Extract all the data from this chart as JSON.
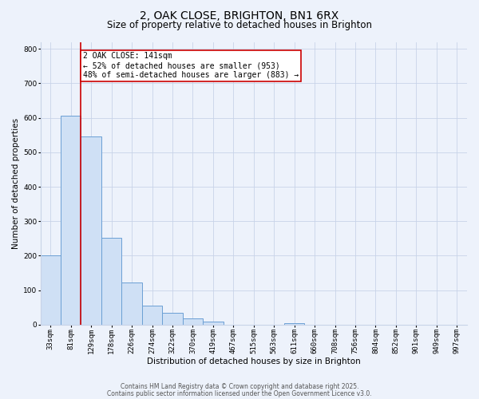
{
  "title": "2, OAK CLOSE, BRIGHTON, BN1 6RX",
  "subtitle": "Size of property relative to detached houses in Brighton",
  "xlabel": "Distribution of detached houses by size in Brighton",
  "ylabel": "Number of detached properties",
  "bar_labels": [
    "33sqm",
    "81sqm",
    "129sqm",
    "178sqm",
    "226sqm",
    "274sqm",
    "322sqm",
    "370sqm",
    "419sqm",
    "467sqm",
    "515sqm",
    "563sqm",
    "611sqm",
    "660sqm",
    "708sqm",
    "756sqm",
    "804sqm",
    "852sqm",
    "901sqm",
    "949sqm",
    "997sqm"
  ],
  "bar_values": [
    202,
    606,
    546,
    252,
    122,
    55,
    35,
    18,
    10,
    0,
    0,
    0,
    5,
    0,
    0,
    0,
    0,
    0,
    0,
    0,
    0
  ],
  "bar_color": "#cfe0f5",
  "bar_edge_color": "#6b9fd4",
  "background_color": "#edf2fb",
  "grid_color": "#c8d3e8",
  "vline_color": "#cc0000",
  "ylim": [
    0,
    820
  ],
  "yticks": [
    0,
    100,
    200,
    300,
    400,
    500,
    600,
    700,
    800
  ],
  "annotation_title": "2 OAK CLOSE: 141sqm",
  "annotation_line1": "← 52% of detached houses are smaller (953)",
  "annotation_line2": "48% of semi-detached houses are larger (883) →",
  "annotation_box_color": "#ffffff",
  "annotation_box_edge_color": "#cc0000",
  "footer1": "Contains HM Land Registry data © Crown copyright and database right 2025.",
  "footer2": "Contains public sector information licensed under the Open Government Licence v3.0.",
  "title_fontsize": 10,
  "subtitle_fontsize": 8.5,
  "axis_label_fontsize": 7.5,
  "tick_fontsize": 6.5,
  "annotation_fontsize": 7,
  "footer_fontsize": 5.5
}
